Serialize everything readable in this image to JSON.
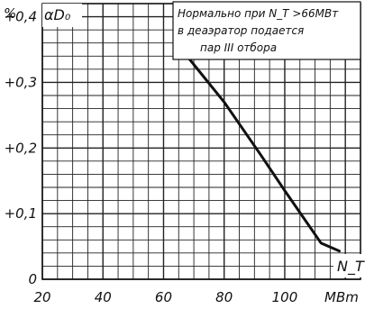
{
  "chart_data": {
    "type": "line",
    "ylabel_unit": "%",
    "ylabel": "αD₀",
    "xlabel": "N_T",
    "x_unit": "MBm",
    "xlim": [
      20,
      125
    ],
    "ylim": [
      0,
      0.42
    ],
    "x_ticks": [
      20,
      40,
      60,
      80,
      100
    ],
    "x_tick_labels": [
      "20",
      "40",
      "60",
      "80",
      "100"
    ],
    "y_ticks": [
      0,
      0.1,
      0.2,
      0.3,
      0.4
    ],
    "y_tick_labels": [
      "0",
      "+0,1",
      "+0,2",
      "+0,3",
      "+0,4"
    ],
    "grid": true,
    "annotation_lines": [
      "Нормально при N_T >66МВт",
      "в деаэратор подается",
      "пар III отбора"
    ],
    "series": [
      {
        "x": [
          66,
          80,
          92,
          100,
          106,
          112,
          118
        ],
        "y": [
          0.35,
          0.27,
          0.19,
          0.135,
          0.095,
          0.055,
          0.043
        ]
      }
    ],
    "line_color": "#111111",
    "grid_color": "#222222"
  }
}
